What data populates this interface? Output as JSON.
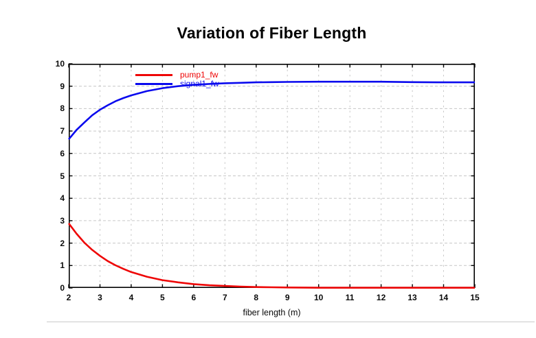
{
  "panel": {
    "background": "#ffffff",
    "separator_color": "#cacaca"
  },
  "chart": {
    "title": "Variation of Fiber Length",
    "xlabel": "fiber length (m)"
  },
  "chart_data": {
    "type": "line",
    "title": "Variation of Fiber Length",
    "xlabel": "fiber length (m)",
    "ylabel": "",
    "xlim": [
      2,
      15
    ],
    "ylim": [
      0,
      10
    ],
    "x_ticks": [
      2,
      3,
      4,
      5,
      6,
      7,
      8,
      9,
      10,
      11,
      12,
      13,
      14,
      15
    ],
    "y_ticks": [
      0,
      1,
      2,
      3,
      4,
      5,
      6,
      7,
      8,
      9,
      10
    ],
    "grid": "dashed",
    "grid_color": "#c8c8c8",
    "axis_color": "#000000",
    "legend_position": "inside-top-left",
    "series": [
      {
        "name": "pump1_fw",
        "color": "#ee0505",
        "x": [
          2,
          2.25,
          2.5,
          2.75,
          3,
          3.25,
          3.5,
          3.75,
          4,
          4.5,
          5,
          5.5,
          6,
          6.5,
          7,
          7.5,
          8,
          8.5,
          9,
          10,
          11,
          12,
          13,
          14,
          15
        ],
        "y": [
          2.88,
          2.42,
          2.02,
          1.7,
          1.43,
          1.2,
          1.01,
          0.85,
          0.71,
          0.5,
          0.35,
          0.25,
          0.17,
          0.12,
          0.09,
          0.06,
          0.04,
          0.03,
          0.02,
          0.01,
          0.01,
          0.01,
          0.01,
          0.01,
          0.01
        ]
      },
      {
        "name": "signal1_fw",
        "color": "#0909ee",
        "x": [
          2,
          2.25,
          2.5,
          2.75,
          3,
          3.25,
          3.5,
          3.75,
          4,
          4.5,
          5,
          5.5,
          6,
          6.5,
          7,
          7.5,
          8,
          8.5,
          9,
          10,
          11,
          12,
          13,
          14,
          15
        ],
        "y": [
          6.63,
          7.05,
          7.38,
          7.7,
          7.95,
          8.15,
          8.33,
          8.47,
          8.59,
          8.78,
          8.91,
          9.0,
          9.06,
          9.1,
          9.13,
          9.15,
          9.17,
          9.18,
          9.19,
          9.2,
          9.2,
          9.2,
          9.18,
          9.17,
          9.17
        ]
      }
    ]
  }
}
